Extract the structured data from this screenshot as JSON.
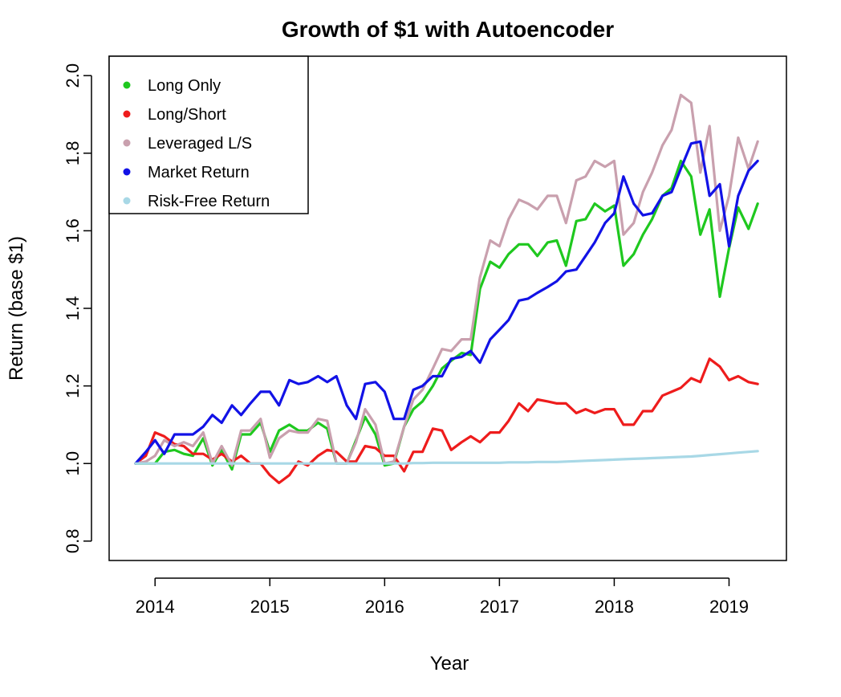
{
  "chart_data": {
    "type": "line",
    "title": "Growth of $1 with Autoencoder",
    "xlabel": "Year",
    "ylabel": "Return (base $1)",
    "xlim": [
      2013.6,
      2019.5
    ],
    "ylim": [
      0.75,
      2.05
    ],
    "xticks": [
      2014,
      2015,
      2016,
      2017,
      2018,
      2019
    ],
    "xtick_labels": [
      "2014",
      "2015",
      "2016",
      "2017",
      "2018",
      "2019"
    ],
    "yticks": [
      0.8,
      1.0,
      1.2,
      1.4,
      1.6,
      1.8,
      2.0
    ],
    "ytick_labels": [
      "0.8",
      "1.0",
      "1.2",
      "1.4",
      "1.6",
      "1.8",
      "2.0"
    ],
    "grid": false,
    "legend_position": "top-left",
    "x": [
      2013.83,
      2013.92,
      2014.0,
      2014.08,
      2014.17,
      2014.25,
      2014.33,
      2014.42,
      2014.5,
      2014.58,
      2014.67,
      2014.75,
      2014.83,
      2014.92,
      2015.0,
      2015.08,
      2015.17,
      2015.25,
      2015.33,
      2015.42,
      2015.5,
      2015.58,
      2015.67,
      2015.75,
      2015.83,
      2015.92,
      2016.0,
      2016.08,
      2016.17,
      2016.25,
      2016.33,
      2016.42,
      2016.5,
      2016.58,
      2016.67,
      2016.75,
      2016.83,
      2016.92,
      2017.0,
      2017.08,
      2017.17,
      2017.25,
      2017.33,
      2017.42,
      2017.5,
      2017.58,
      2017.67,
      2017.75,
      2017.83,
      2017.92,
      2018.0,
      2018.08,
      2018.17,
      2018.25,
      2018.33,
      2018.42,
      2018.5,
      2018.58,
      2018.67,
      2018.75,
      2018.83,
      2018.92,
      2019.0,
      2019.08,
      2019.17,
      2019.25
    ],
    "series": [
      {
        "name": "Long Only",
        "color": "#1fc81f",
        "values": [
          1.0,
          1.0,
          1.0,
          1.03,
          1.035,
          1.025,
          1.02,
          1.065,
          0.995,
          1.035,
          0.985,
          1.075,
          1.075,
          1.105,
          1.03,
          1.085,
          1.1,
          1.085,
          1.085,
          1.105,
          1.09,
          1.0,
          1.0,
          1.06,
          1.12,
          1.075,
          0.995,
          1.0,
          1.095,
          1.14,
          1.16,
          1.2,
          1.245,
          1.265,
          1.285,
          1.28,
          1.45,
          1.52,
          1.505,
          1.54,
          1.565,
          1.565,
          1.535,
          1.57,
          1.575,
          1.51,
          1.625,
          1.63,
          1.67,
          1.65,
          1.665,
          1.51,
          1.54,
          1.59,
          1.63,
          1.69,
          1.71,
          1.78,
          1.74,
          1.59,
          1.655,
          1.43,
          1.555,
          1.66,
          1.605,
          1.67
        ]
      },
      {
        "name": "Long/Short",
        "color": "#ee1c1c",
        "values": [
          1.0,
          1.02,
          1.08,
          1.07,
          1.05,
          1.045,
          1.025,
          1.025,
          1.01,
          1.025,
          1.005,
          1.02,
          1.0,
          1.0,
          0.97,
          0.95,
          0.97,
          1.005,
          0.995,
          1.02,
          1.035,
          1.03,
          1.005,
          1.005,
          1.045,
          1.04,
          1.02,
          1.02,
          0.98,
          1.03,
          1.03,
          1.09,
          1.085,
          1.035,
          1.055,
          1.07,
          1.055,
          1.08,
          1.08,
          1.11,
          1.155,
          1.135,
          1.165,
          1.16,
          1.155,
          1.155,
          1.13,
          1.14,
          1.13,
          1.14,
          1.14,
          1.1,
          1.1,
          1.135,
          1.135,
          1.175,
          1.185,
          1.195,
          1.22,
          1.21,
          1.27,
          1.25,
          1.215,
          1.225,
          1.21,
          1.205
        ]
      },
      {
        "name": "Leveraged L/S",
        "color": "#c9a0ae",
        "values": [
          1.0,
          1.005,
          1.02,
          1.06,
          1.045,
          1.055,
          1.045,
          1.08,
          1.0,
          1.045,
          0.995,
          1.085,
          1.085,
          1.115,
          1.015,
          1.065,
          1.085,
          1.08,
          1.08,
          1.115,
          1.11,
          1.0,
          1.0,
          1.055,
          1.14,
          1.1,
          1.0,
          1.005,
          1.095,
          1.165,
          1.19,
          1.245,
          1.295,
          1.29,
          1.32,
          1.32,
          1.48,
          1.575,
          1.56,
          1.63,
          1.68,
          1.67,
          1.655,
          1.69,
          1.69,
          1.62,
          1.73,
          1.74,
          1.78,
          1.765,
          1.78,
          1.59,
          1.62,
          1.7,
          1.75,
          1.82,
          1.86,
          1.95,
          1.93,
          1.75,
          1.87,
          1.6,
          1.69,
          1.84,
          1.76,
          1.83
        ]
      },
      {
        "name": "Market Return",
        "color": "#1212e6",
        "values": [
          1.0,
          1.03,
          1.06,
          1.025,
          1.075,
          1.075,
          1.075,
          1.095,
          1.125,
          1.105,
          1.15,
          1.125,
          1.155,
          1.185,
          1.185,
          1.15,
          1.215,
          1.205,
          1.21,
          1.225,
          1.21,
          1.225,
          1.15,
          1.115,
          1.205,
          1.21,
          1.185,
          1.115,
          1.115,
          1.19,
          1.2,
          1.225,
          1.225,
          1.27,
          1.275,
          1.29,
          1.26,
          1.32,
          1.345,
          1.37,
          1.42,
          1.425,
          1.44,
          1.455,
          1.47,
          1.495,
          1.5,
          1.535,
          1.57,
          1.62,
          1.645,
          1.74,
          1.67,
          1.64,
          1.645,
          1.69,
          1.7,
          1.76,
          1.825,
          1.83,
          1.69,
          1.72,
          1.56,
          1.69,
          1.755,
          1.78
        ]
      },
      {
        "name": "Risk-Free Return",
        "color": "#a8d8e6",
        "values": [
          1.0,
          1.0,
          1.0,
          1.0,
          1.0,
          1.0,
          1.0,
          1.0,
          1.0,
          1.0,
          1.0,
          1.0,
          1.0,
          1.0,
          1.0,
          1.0,
          1.0,
          1.0,
          1.0,
          1.0,
          1.0,
          1.0,
          1.0,
          1.0,
          1.0,
          1.0,
          1.0,
          1.0,
          1.0,
          1.001,
          1.001,
          1.002,
          1.002,
          1.002,
          1.002,
          1.002,
          1.002,
          1.002,
          1.002,
          1.003,
          1.003,
          1.003,
          1.004,
          1.004,
          1.004,
          1.005,
          1.006,
          1.007,
          1.008,
          1.009,
          1.01,
          1.011,
          1.012,
          1.013,
          1.014,
          1.015,
          1.016,
          1.017,
          1.018,
          1.02,
          1.022,
          1.024,
          1.026,
          1.028,
          1.03,
          1.032
        ]
      }
    ]
  }
}
